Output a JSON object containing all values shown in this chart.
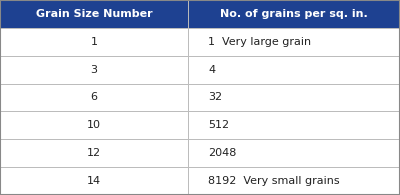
{
  "header": [
    "Grain Size Number",
    "No. of grains per sq. in."
  ],
  "rows": [
    [
      "1",
      "1  Very large grain"
    ],
    [
      "3",
      "4"
    ],
    [
      "6",
      "32"
    ],
    [
      "10",
      "512"
    ],
    [
      "12",
      "2048"
    ],
    [
      "14",
      "8192  Very small grains"
    ]
  ],
  "header_bg": "#1e4191",
  "header_fg": "#ffffff",
  "row_bg": "#ffffff",
  "row_fg": "#222222",
  "border_color": "#bbbbbb",
  "outer_border_color": "#888888",
  "col_split": 0.47,
  "header_fontsize": 8.0,
  "row_fontsize": 8.0
}
